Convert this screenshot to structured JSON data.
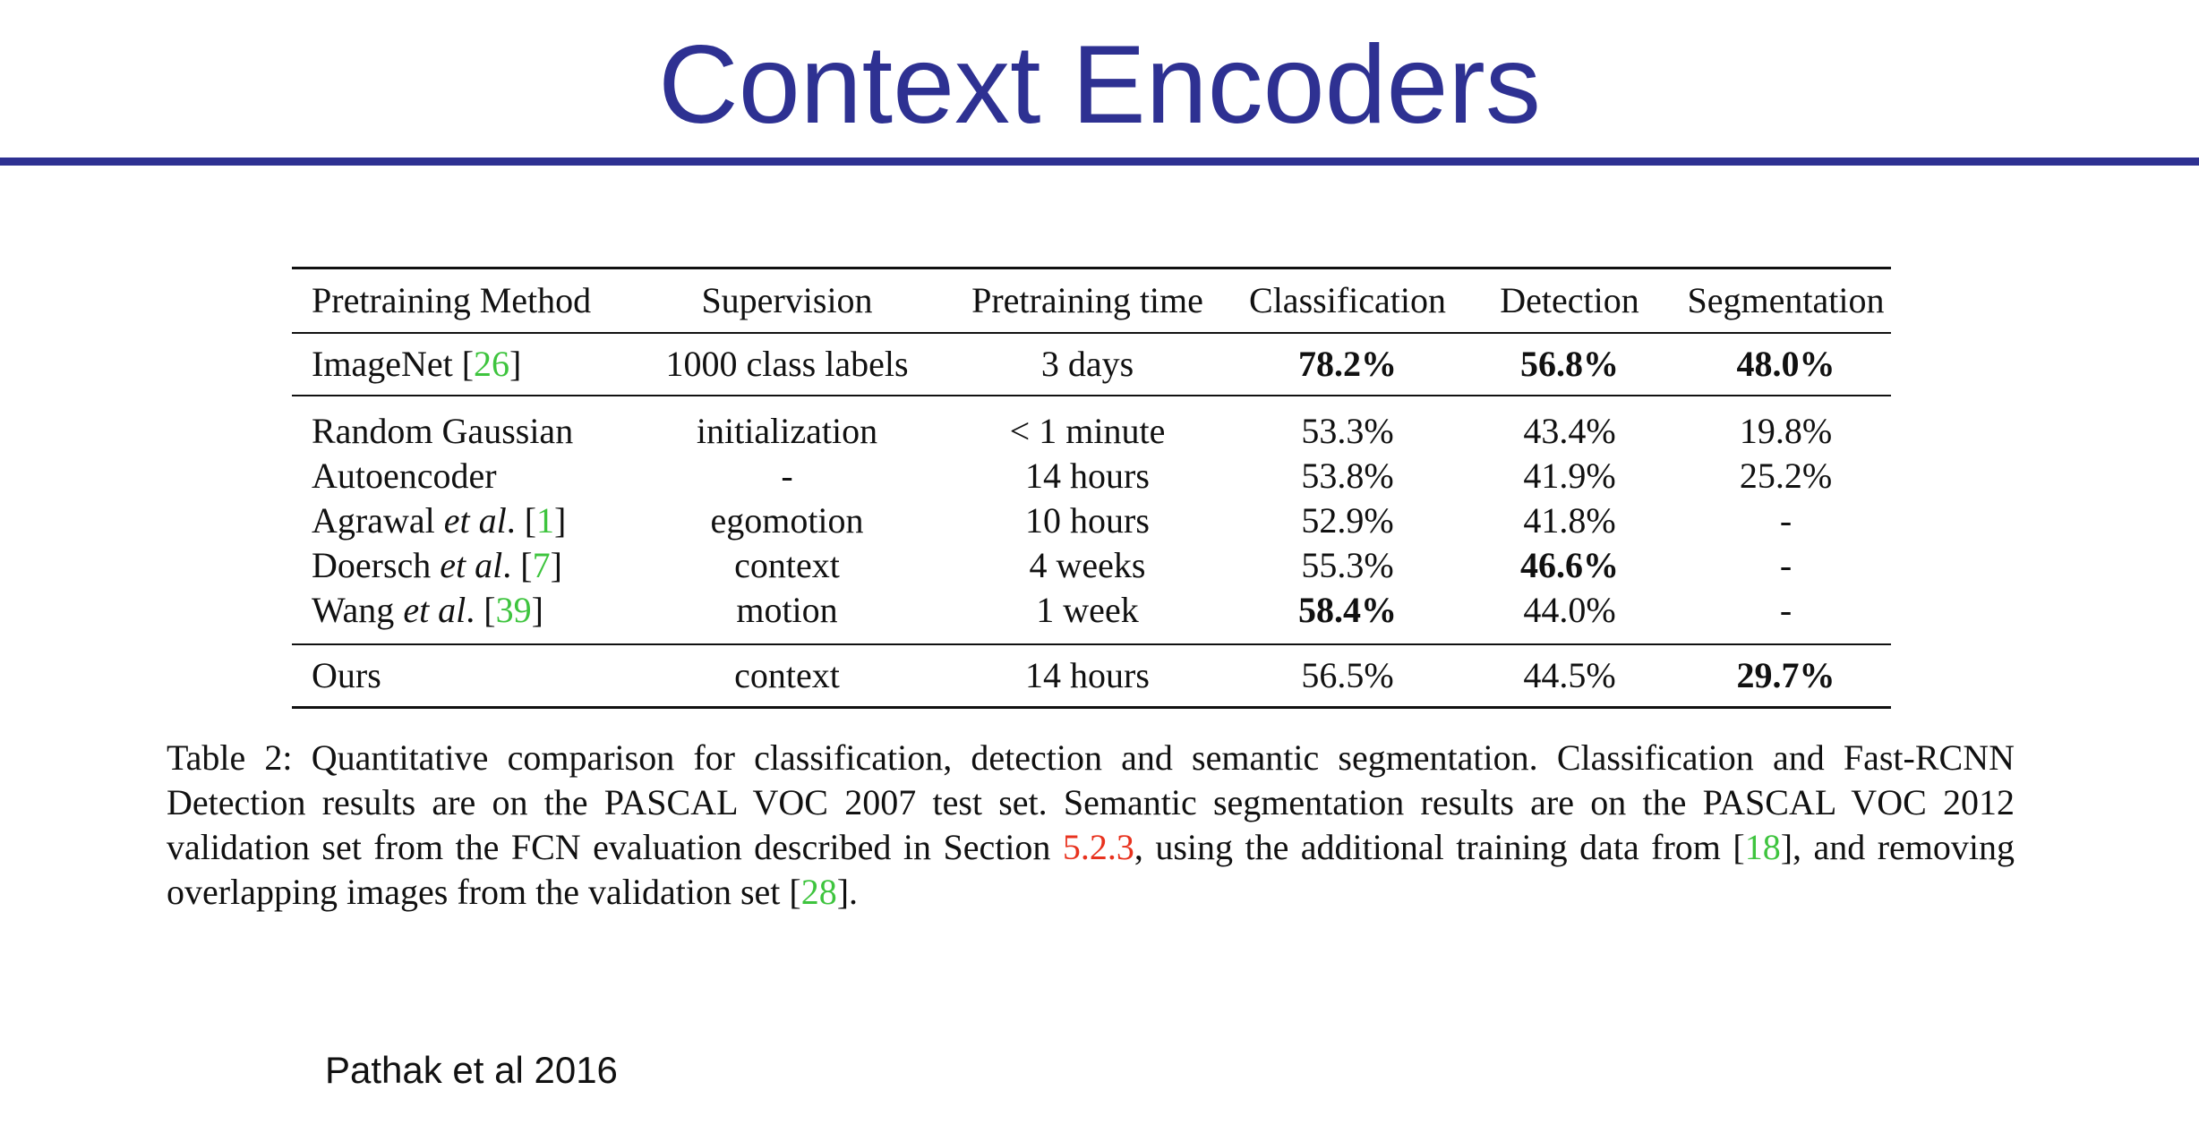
{
  "slide": {
    "title": "Context Encoders",
    "credit": "Pathak et al 2016"
  },
  "table": {
    "headers": [
      "Pretraining Method",
      "Supervision",
      "Pretraining time",
      "Classification",
      "Detection",
      "Segmentation"
    ],
    "imagenet": {
      "method": "ImageNet [",
      "cite": "26",
      "method_tail": "]",
      "supervision": "1000 class labels",
      "time": "3 days",
      "classification": "78.2%",
      "detection": "56.8%",
      "segmentation": "48.0%"
    },
    "rows": [
      {
        "method": "Random Gaussian",
        "etal": "",
        "cite": "",
        "supervision": "initialization",
        "time": "< 1 minute",
        "classification": "53.3%",
        "detection": "43.4%",
        "segmentation": "19.8%"
      },
      {
        "method": "Autoencoder",
        "etal": "",
        "cite": "",
        "supervision": "-",
        "time": "14 hours",
        "classification": "53.8%",
        "detection": "41.9%",
        "segmentation": "25.2%"
      },
      {
        "method": "Agrawal",
        "etal": "et al",
        "cite": "1",
        "supervision": "egomotion",
        "time": "10 hours",
        "classification": "52.9%",
        "detection": "41.8%",
        "segmentation": "-"
      },
      {
        "method": "Doersch",
        "etal": "et al",
        "cite": "7",
        "supervision": "context",
        "time": "4 weeks",
        "classification": "55.3%",
        "detection": "46.6%",
        "segmentation": "-"
      },
      {
        "method": "Wang",
        "etal": "et al",
        "cite": "39",
        "supervision": "motion",
        "time": "1 week",
        "classification": "58.4%",
        "detection": "44.0%",
        "segmentation": "-"
      }
    ],
    "ours": {
      "method": "Ours",
      "supervision": "context",
      "time": "14 hours",
      "classification": "56.5%",
      "detection": "44.5%",
      "segmentation": "29.7%"
    }
  },
  "caption": {
    "line1": "Table 2: Quantitative comparison for classification, detection and semantic segmentation. Classification and Fast-RCNN",
    "line2": "Detection results are on the PASCAL VOC 2007 test set. Semantic segmentation results are on the PASCAL VOC 2012",
    "line3_a": "validation set from the FCN evaluation described in Section ",
    "line3_section": "5.2.3",
    "line3_b": ", using the additional training data from [",
    "line3_cite": "18",
    "line3_c": "], and removing",
    "line4_a": "overlapping images from the validation set [",
    "line4_cite": "28",
    "line4_b": "]."
  },
  "colors": {
    "title": "#2e3192",
    "citation": "#3ec43e",
    "section_ref": "#e8321e"
  }
}
